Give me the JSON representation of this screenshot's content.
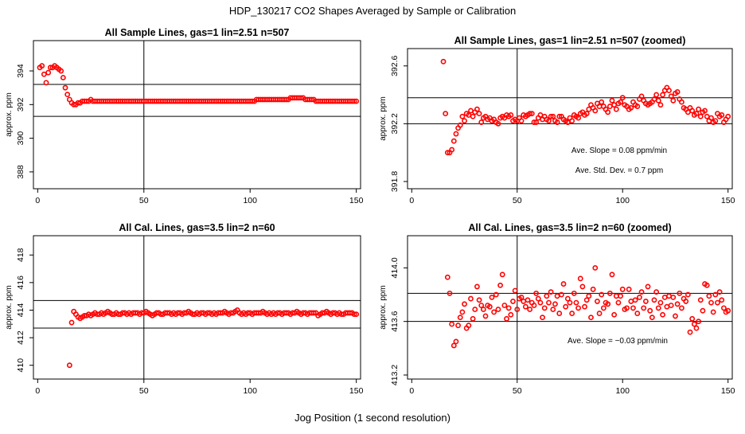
{
  "page_title": "HDP_130217  CO2 Shapes Averaged by Sample or Calibration",
  "x_axis_label": "Jog Position (1 second resolution)",
  "colors": {
    "points": "#ff0000",
    "lines": "#000000",
    "background": "#ffffff"
  },
  "chart_data": [
    {
      "type": "scatter",
      "title": "All Sample Lines, gas=1 lin=2.51 n=507",
      "ylabel": "approx. ppm",
      "xlim": [
        -2,
        152
      ],
      "ylim": [
        387,
        395.8
      ],
      "xticks": [
        0,
        50,
        100,
        150
      ],
      "xtick_labels": [
        "0",
        "50",
        "100",
        "150"
      ],
      "yticks": [
        388,
        390,
        392,
        394
      ],
      "ytick_labels": [
        "388",
        "390",
        "392",
        "394"
      ],
      "hlines": [
        393.2,
        391.3
      ],
      "vlines": [
        50
      ],
      "x": [
        1,
        2,
        3,
        4,
        5,
        6,
        7,
        8,
        9,
        10,
        11,
        12,
        13,
        14,
        15,
        16,
        17,
        18,
        19,
        20,
        21,
        22,
        23,
        24,
        25,
        26,
        27,
        28,
        29,
        30,
        31,
        32,
        33,
        34,
        35,
        36,
        37,
        38,
        39,
        40,
        41,
        42,
        43,
        44,
        45,
        46,
        47,
        48,
        49,
        50,
        51,
        52,
        53,
        54,
        55,
        56,
        57,
        58,
        59,
        60,
        61,
        62,
        63,
        64,
        65,
        66,
        67,
        68,
        69,
        70,
        71,
        72,
        73,
        74,
        75,
        76,
        77,
        78,
        79,
        80,
        81,
        82,
        83,
        84,
        85,
        86,
        87,
        88,
        89,
        90,
        91,
        92,
        93,
        94,
        95,
        96,
        97,
        98,
        99,
        100,
        101,
        102,
        103,
        104,
        105,
        106,
        107,
        108,
        109,
        110,
        111,
        112,
        113,
        114,
        115,
        116,
        117,
        118,
        119,
        120,
        121,
        122,
        123,
        124,
        125,
        126,
        127,
        128,
        129,
        130,
        131,
        132,
        133,
        134,
        135,
        136,
        137,
        138,
        139,
        140,
        141,
        142,
        143,
        144,
        145,
        146,
        147,
        148,
        149,
        150
      ],
      "y": [
        394.2,
        394.3,
        393.8,
        393.3,
        393.9,
        394.2,
        394.2,
        394.3,
        394.2,
        394.1,
        394.0,
        393.6,
        393.0,
        392.6,
        392.3,
        392.1,
        392.0,
        392.0,
        392.1,
        392.1,
        392.2,
        392.2,
        392.2,
        392.2,
        392.3,
        392.2,
        392.2,
        392.2,
        392.2,
        392.2,
        392.2,
        392.2,
        392.2,
        392.2,
        392.2,
        392.2,
        392.2,
        392.2,
        392.2,
        392.2,
        392.2,
        392.2,
        392.2,
        392.2,
        392.2,
        392.2,
        392.2,
        392.2,
        392.2,
        392.2,
        392.2,
        392.2,
        392.2,
        392.2,
        392.2,
        392.2,
        392.2,
        392.2,
        392.2,
        392.2,
        392.2,
        392.2,
        392.2,
        392.2,
        392.2,
        392.2,
        392.2,
        392.2,
        392.2,
        392.2,
        392.2,
        392.2,
        392.2,
        392.2,
        392.2,
        392.2,
        392.2,
        392.2,
        392.2,
        392.2,
        392.2,
        392.2,
        392.2,
        392.2,
        392.2,
        392.2,
        392.2,
        392.2,
        392.2,
        392.2,
        392.2,
        392.2,
        392.2,
        392.2,
        392.2,
        392.2,
        392.2,
        392.2,
        392.2,
        392.2,
        392.2,
        392.2,
        392.3,
        392.3,
        392.3,
        392.3,
        392.3,
        392.3,
        392.3,
        392.3,
        392.3,
        392.3,
        392.3,
        392.3,
        392.3,
        392.3,
        392.3,
        392.3,
        392.4,
        392.4,
        392.4,
        392.4,
        392.4,
        392.4,
        392.4,
        392.3,
        392.3,
        392.3,
        392.3,
        392.3,
        392.2,
        392.2,
        392.2,
        392.2,
        392.2,
        392.2,
        392.2,
        392.2,
        392.2,
        392.2,
        392.2,
        392.2,
        392.2,
        392.2,
        392.2,
        392.2,
        392.2,
        392.2,
        392.2,
        392.2
      ],
      "annotations": []
    },
    {
      "type": "scatter",
      "title": "All Sample Lines, gas=1 lin=2.51 n=507 (zoomed)",
      "ylabel": "approx. ppm",
      "xlim": [
        -2,
        152
      ],
      "ylim": [
        391.75,
        392.72
      ],
      "xticks": [
        0,
        50,
        100,
        150
      ],
      "xtick_labels": [
        "0",
        "50",
        "100",
        "150"
      ],
      "yticks": [
        391.8,
        392.2,
        392.6
      ],
      "ytick_labels": [
        "391.8",
        "392.2",
        "392.6"
      ],
      "hlines": [
        392.38,
        392.2
      ],
      "vlines": [
        50
      ],
      "x": [
        15,
        16,
        17,
        18,
        19,
        20,
        21,
        22,
        23,
        24,
        25,
        26,
        27,
        28,
        29,
        30,
        31,
        32,
        33,
        34,
        35,
        36,
        37,
        38,
        39,
        40,
        41,
        42,
        43,
        44,
        45,
        46,
        47,
        48,
        49,
        50,
        51,
        52,
        53,
        54,
        55,
        56,
        57,
        58,
        59,
        60,
        61,
        62,
        63,
        64,
        65,
        66,
        67,
        68,
        69,
        70,
        71,
        72,
        73,
        74,
        75,
        76,
        77,
        78,
        79,
        80,
        81,
        82,
        83,
        84,
        85,
        86,
        87,
        88,
        89,
        90,
        91,
        92,
        93,
        94,
        95,
        96,
        97,
        98,
        99,
        100,
        101,
        102,
        103,
        104,
        105,
        106,
        107,
        108,
        109,
        110,
        111,
        112,
        113,
        114,
        115,
        116,
        117,
        118,
        119,
        120,
        121,
        122,
        123,
        124,
        125,
        126,
        127,
        128,
        129,
        130,
        131,
        132,
        133,
        134,
        135,
        136,
        137,
        138,
        139,
        140,
        141,
        142,
        143,
        144,
        145,
        146,
        147,
        148,
        149,
        150
      ],
      "y": [
        392.63,
        392.27,
        392.0,
        392.0,
        392.02,
        392.08,
        392.13,
        392.17,
        392.19,
        392.25,
        392.22,
        392.27,
        392.26,
        392.29,
        392.25,
        392.28,
        392.3,
        392.27,
        392.21,
        392.24,
        392.25,
        392.23,
        392.24,
        392.22,
        392.23,
        392.21,
        392.2,
        392.24,
        392.25,
        392.24,
        392.26,
        392.25,
        392.26,
        392.22,
        392.23,
        392.22,
        392.24,
        392.22,
        392.26,
        392.25,
        392.26,
        392.27,
        392.27,
        392.21,
        392.21,
        392.24,
        392.26,
        392.23,
        392.25,
        392.23,
        392.22,
        392.25,
        392.25,
        392.22,
        392.21,
        392.25,
        392.25,
        392.23,
        392.22,
        392.21,
        392.24,
        392.22,
        392.26,
        392.25,
        392.24,
        392.27,
        392.28,
        392.26,
        392.27,
        392.3,
        392.33,
        392.31,
        392.29,
        392.34,
        392.32,
        392.35,
        392.32,
        392.3,
        392.28,
        392.32,
        392.36,
        392.33,
        392.3,
        392.34,
        392.35,
        392.38,
        392.33,
        392.32,
        392.3,
        392.31,
        392.35,
        392.33,
        392.32,
        392.37,
        392.39,
        392.36,
        392.34,
        392.33,
        392.34,
        392.35,
        392.37,
        392.4,
        392.36,
        392.33,
        392.4,
        392.43,
        392.45,
        392.43,
        392.39,
        392.36,
        392.41,
        392.42,
        392.37,
        392.35,
        392.31,
        392.3,
        392.28,
        392.31,
        392.29,
        392.26,
        392.27,
        392.3,
        392.25,
        392.28,
        392.29,
        392.25,
        392.22,
        392.24,
        392.21,
        392.22,
        392.27,
        392.25,
        392.26,
        392.21,
        392.23,
        392.25
      ],
      "annotations": [
        "Ave. Slope =  0.08  ppm/min",
        "Ave. Std. Dev. =  0.7  ppm"
      ]
    },
    {
      "type": "scatter",
      "title": "All Cal. Lines, gas=3.5 lin=2 n=60",
      "ylabel": "approx. ppm",
      "xlim": [
        -2,
        152
      ],
      "ylim": [
        409,
        419.4
      ],
      "xticks": [
        0,
        50,
        100,
        150
      ],
      "xtick_labels": [
        "0",
        "50",
        "100",
        "150"
      ],
      "yticks": [
        410,
        412,
        414,
        416,
        418
      ],
      "ytick_labels": [
        "410",
        "412",
        "414",
        "416",
        "418"
      ],
      "hlines": [
        414.7,
        412.7
      ],
      "vlines": [
        50
      ],
      "x": [
        15,
        16,
        17,
        18,
        19,
        20,
        21,
        22,
        23,
        24,
        25,
        26,
        27,
        28,
        29,
        30,
        31,
        32,
        33,
        34,
        35,
        36,
        37,
        38,
        39,
        40,
        41,
        42,
        43,
        44,
        45,
        46,
        47,
        48,
        49,
        50,
        51,
        52,
        53,
        54,
        55,
        56,
        57,
        58,
        59,
        60,
        61,
        62,
        63,
        64,
        65,
        66,
        67,
        68,
        69,
        70,
        71,
        72,
        73,
        74,
        75,
        76,
        77,
        78,
        79,
        80,
        81,
        82,
        83,
        84,
        85,
        86,
        87,
        88,
        89,
        90,
        91,
        92,
        93,
        94,
        95,
        96,
        97,
        98,
        99,
        100,
        101,
        102,
        103,
        104,
        105,
        106,
        107,
        108,
        109,
        110,
        111,
        112,
        113,
        114,
        115,
        116,
        117,
        118,
        119,
        120,
        121,
        122,
        123,
        124,
        125,
        126,
        127,
        128,
        129,
        130,
        131,
        132,
        133,
        134,
        135,
        136,
        137,
        138,
        139,
        140,
        141,
        142,
        143,
        144,
        145,
        146,
        147,
        148,
        149,
        150
      ],
      "y": [
        410.0,
        413.1,
        413.9,
        413.7,
        413.5,
        413.4,
        413.5,
        413.6,
        413.6,
        413.7,
        413.6,
        413.7,
        413.8,
        413.7,
        413.7,
        413.8,
        413.7,
        413.8,
        413.9,
        413.8,
        413.7,
        413.7,
        413.8,
        413.7,
        413.7,
        413.8,
        413.8,
        413.7,
        413.8,
        413.7,
        413.8,
        413.8,
        413.8,
        413.7,
        413.8,
        413.8,
        413.9,
        413.8,
        413.7,
        413.6,
        413.7,
        413.8,
        413.8,
        413.7,
        413.7,
        413.8,
        413.8,
        413.8,
        413.7,
        413.8,
        413.7,
        413.8,
        413.8,
        413.7,
        413.8,
        413.8,
        413.9,
        413.8,
        413.7,
        413.7,
        413.8,
        413.7,
        413.8,
        413.8,
        413.7,
        413.8,
        413.8,
        413.7,
        413.8,
        413.7,
        413.8,
        413.8,
        413.8,
        413.9,
        413.8,
        413.7,
        413.8,
        413.8,
        413.9,
        414.0,
        413.8,
        413.7,
        413.8,
        413.7,
        413.8,
        413.8,
        413.7,
        413.8,
        413.8,
        413.8,
        413.8,
        413.9,
        413.8,
        413.7,
        413.8,
        413.7,
        413.8,
        413.7,
        413.8,
        413.8,
        413.7,
        413.8,
        413.8,
        413.8,
        413.7,
        413.8,
        413.8,
        413.9,
        413.8,
        413.7,
        413.8,
        413.8,
        413.7,
        413.8,
        413.8,
        413.8,
        413.8,
        413.6,
        413.7,
        413.8,
        413.8,
        413.9,
        413.8,
        413.7,
        413.8,
        413.8,
        413.7,
        413.8,
        413.7,
        413.7,
        413.8,
        413.8,
        413.8,
        413.8,
        413.7,
        413.7
      ],
      "annotations": []
    },
    {
      "type": "scatter",
      "title": "All Cal. Lines, gas=3.5 lin=2 n=60 (zoomed)",
      "ylabel": "approx. ppm",
      "xlim": [
        -2,
        152
      ],
      "ylim": [
        413.17,
        414.24
      ],
      "xticks": [
        0,
        50,
        100,
        150
      ],
      "xtick_labels": [
        "0",
        "50",
        "100",
        "150"
      ],
      "yticks": [
        413.2,
        413.6,
        414.0
      ],
      "ytick_labels": [
        "413.2",
        "413.6",
        "414.0"
      ],
      "hlines": [
        413.81,
        413.6
      ],
      "vlines": [
        50
      ],
      "x": [
        17,
        18,
        19,
        20,
        21,
        22,
        23,
        24,
        25,
        26,
        27,
        28,
        29,
        30,
        31,
        32,
        33,
        34,
        35,
        36,
        37,
        38,
        39,
        40,
        41,
        42,
        43,
        44,
        45,
        46,
        47,
        48,
        49,
        50,
        51,
        52,
        53,
        54,
        55,
        56,
        57,
        58,
        59,
        60,
        61,
        62,
        63,
        64,
        65,
        66,
        67,
        68,
        69,
        70,
        71,
        72,
        73,
        74,
        75,
        76,
        77,
        78,
        79,
        80,
        81,
        82,
        83,
        84,
        85,
        86,
        87,
        88,
        89,
        90,
        91,
        92,
        93,
        94,
        95,
        96,
        97,
        98,
        99,
        100,
        101,
        102,
        103,
        104,
        105,
        106,
        107,
        108,
        109,
        110,
        111,
        112,
        113,
        114,
        115,
        116,
        117,
        118,
        119,
        120,
        121,
        122,
        123,
        124,
        125,
        126,
        127,
        128,
        129,
        130,
        131,
        132,
        133,
        134,
        135,
        136,
        137,
        138,
        139,
        140,
        141,
        142,
        143,
        144,
        145,
        146,
        147,
        148,
        149,
        150
      ],
      "y": [
        413.93,
        413.81,
        413.58,
        413.42,
        413.45,
        413.57,
        413.63,
        413.67,
        413.73,
        413.55,
        413.57,
        413.77,
        413.62,
        413.69,
        413.86,
        413.76,
        413.72,
        413.69,
        413.64,
        413.72,
        413.71,
        413.78,
        413.67,
        413.8,
        413.69,
        413.87,
        413.95,
        413.72,
        413.62,
        413.7,
        413.65,
        413.75,
        413.83,
        413.69,
        413.77,
        413.78,
        413.75,
        413.71,
        413.76,
        413.69,
        413.74,
        413.72,
        413.81,
        413.77,
        413.74,
        413.63,
        413.7,
        413.79,
        413.74,
        413.82,
        413.69,
        413.73,
        413.79,
        413.66,
        413.8,
        413.88,
        413.71,
        413.77,
        413.74,
        413.66,
        413.81,
        413.74,
        413.7,
        413.92,
        413.86,
        413.71,
        413.76,
        413.79,
        413.63,
        413.84,
        414.0,
        413.75,
        413.66,
        413.8,
        413.7,
        413.74,
        413.73,
        413.81,
        413.95,
        413.65,
        413.79,
        413.74,
        413.79,
        413.84,
        413.69,
        413.7,
        413.84,
        413.75,
        413.7,
        413.76,
        413.66,
        413.78,
        413.82,
        413.7,
        413.75,
        413.86,
        413.68,
        413.63,
        413.76,
        413.82,
        413.7,
        413.74,
        413.65,
        413.78,
        413.71,
        413.79,
        413.72,
        413.78,
        413.64,
        413.73,
        413.81,
        413.7,
        413.77,
        413.75,
        413.8,
        413.52,
        413.62,
        413.58,
        413.55,
        413.6,
        413.76,
        413.68,
        413.88,
        413.87,
        413.79,
        413.74,
        413.67,
        413.8,
        413.74,
        413.82,
        413.76,
        413.7,
        413.67,
        413.68
      ],
      "annotations": [
        "Ave. Slope =  −0.03  ppm/min"
      ]
    }
  ]
}
